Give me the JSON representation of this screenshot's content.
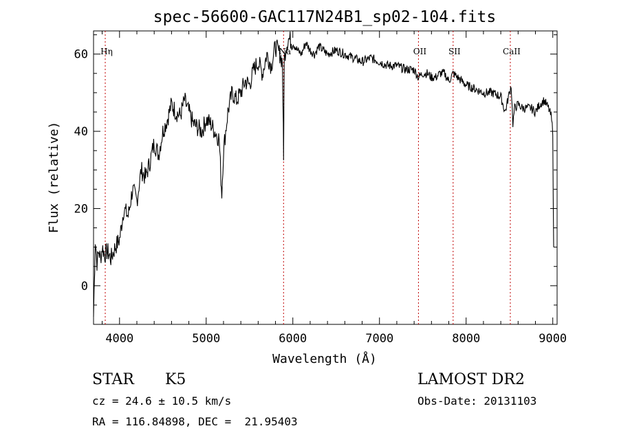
{
  "chart_data": {
    "type": "line",
    "title": "spec-56600-GAC117N24B1_sp02-104.fits",
    "xlabel": "Wavelength (Å)",
    "ylabel": "Flux (relative)",
    "xlim": [
      3700,
      9050
    ],
    "ylim": [
      -10,
      66
    ],
    "xticks": [
      4000,
      5000,
      6000,
      7000,
      8000,
      9000
    ],
    "yticks": [
      0,
      20,
      40,
      60
    ],
    "grid": false,
    "line_color": "#000000",
    "marker_color": "#c00000",
    "lines": [
      {
        "label": "Hη",
        "x": 3835
      },
      {
        "label": "Na",
        "x": 5893
      },
      {
        "label": "OII",
        "x": 7450
      },
      {
        "label": "SII",
        "x": 7850
      },
      {
        "label": "CaII",
        "x": 8510
      }
    ],
    "series": [
      {
        "x": [
          3700,
          3720,
          3740,
          3760,
          3780,
          3800,
          3830,
          3860,
          3900,
          3950,
          4000,
          4050,
          4100,
          4150,
          4200,
          4250,
          4300,
          4350,
          4400,
          4450,
          4500,
          4550,
          4600,
          4650,
          4700,
          4750,
          4800,
          4850,
          4900,
          4950,
          5000,
          5050,
          5100,
          5150,
          5170,
          5180,
          5200,
          5250,
          5300,
          5350,
          5400,
          5450,
          5500,
          5550,
          5600,
          5650,
          5700,
          5750,
          5800,
          5850,
          5880,
          5890,
          5893,
          5896,
          5900,
          5920,
          5950,
          6000,
          6050,
          6100,
          6150,
          6200,
          6250,
          6300,
          6400,
          6500,
          6600,
          6700,
          6800,
          6900,
          7000,
          7100,
          7200,
          7300,
          7400,
          7450,
          7500,
          7550,
          7600,
          7650,
          7700,
          7750,
          7800,
          7850,
          7900,
          7950,
          8000,
          8100,
          8200,
          8300,
          8400,
          8450,
          8500,
          8520,
          8540,
          8560,
          8600,
          8650,
          8700,
          8750,
          8800,
          8850,
          8900,
          8950,
          8980,
          9000,
          9010
        ],
        "values": [
          -8,
          12,
          6,
          9,
          7,
          10,
          8,
          9,
          7,
          10,
          12,
          20,
          18,
          25,
          22,
          30,
          28,
          32,
          37,
          34,
          40,
          43,
          47,
          45,
          44,
          48,
          45,
          42,
          41,
          40,
          43,
          42,
          40,
          38,
          28,
          24,
          35,
          45,
          50,
          48,
          50,
          53,
          52,
          56,
          58,
          55,
          60,
          57,
          62,
          60,
          58,
          40,
          32,
          45,
          58,
          62,
          64,
          63,
          61,
          60,
          63,
          61,
          60,
          62,
          60,
          61,
          60,
          59,
          58,
          59,
          58,
          57,
          57,
          56,
          56,
          54,
          55,
          55,
          54,
          54,
          55,
          55,
          53,
          55,
          54,
          53,
          52,
          51,
          50,
          50,
          49,
          45,
          50,
          52,
          42,
          46,
          47,
          46,
          46,
          46,
          45,
          47,
          48,
          46,
          44,
          40,
          10
        ]
      }
    ]
  },
  "info": {
    "class_label": "STAR",
    "subclass": "K5",
    "survey": "LAMOST DR2",
    "cz": "cz = 24.6 ± 10.5 km/s",
    "obs_date": "Obs-Date: 20131103",
    "coords": "RA = 116.84898, DEC =  21.95403"
  }
}
